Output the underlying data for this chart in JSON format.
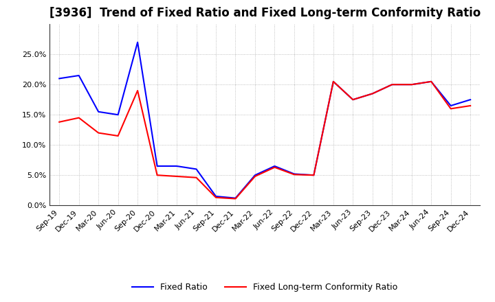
{
  "title": "[3936]  Trend of Fixed Ratio and Fixed Long-term Conformity Ratio",
  "x_labels": [
    "Sep-19",
    "Dec-19",
    "Mar-20",
    "Jun-20",
    "Sep-20",
    "Dec-20",
    "Mar-21",
    "Jun-21",
    "Sep-21",
    "Dec-21",
    "Mar-22",
    "Jun-22",
    "Sep-22",
    "Dec-22",
    "Mar-23",
    "Jun-23",
    "Sep-23",
    "Dec-23",
    "Mar-24",
    "Jun-24",
    "Sep-24",
    "Dec-24"
  ],
  "fixed_ratio": [
    0.21,
    0.215,
    0.155,
    0.15,
    0.27,
    0.065,
    0.065,
    0.06,
    0.015,
    0.012,
    0.05,
    0.065,
    0.052,
    0.05,
    0.205,
    0.175,
    0.185,
    0.2,
    0.2,
    0.205,
    0.165,
    0.175
  ],
  "fixed_lt_ratio": [
    0.138,
    0.145,
    0.12,
    0.115,
    0.19,
    0.05,
    0.048,
    0.046,
    0.013,
    0.011,
    0.048,
    0.063,
    0.051,
    0.05,
    0.205,
    0.175,
    0.185,
    0.2,
    0.2,
    0.205,
    0.16,
    0.165
  ],
  "fixed_ratio_color": "#0000FF",
  "fixed_lt_ratio_color": "#FF0000",
  "background_color": "#FFFFFF",
  "grid_color": "#999999",
  "ylim": [
    0.0,
    0.3
  ],
  "yticks": [
    0.0,
    0.05,
    0.1,
    0.15,
    0.2,
    0.25
  ],
  "legend_fixed_ratio": "Fixed Ratio",
  "legend_fixed_lt_ratio": "Fixed Long-term Conformity Ratio",
  "title_fontsize": 12,
  "axis_fontsize": 8,
  "legend_fontsize": 9,
  "line_width": 1.5
}
